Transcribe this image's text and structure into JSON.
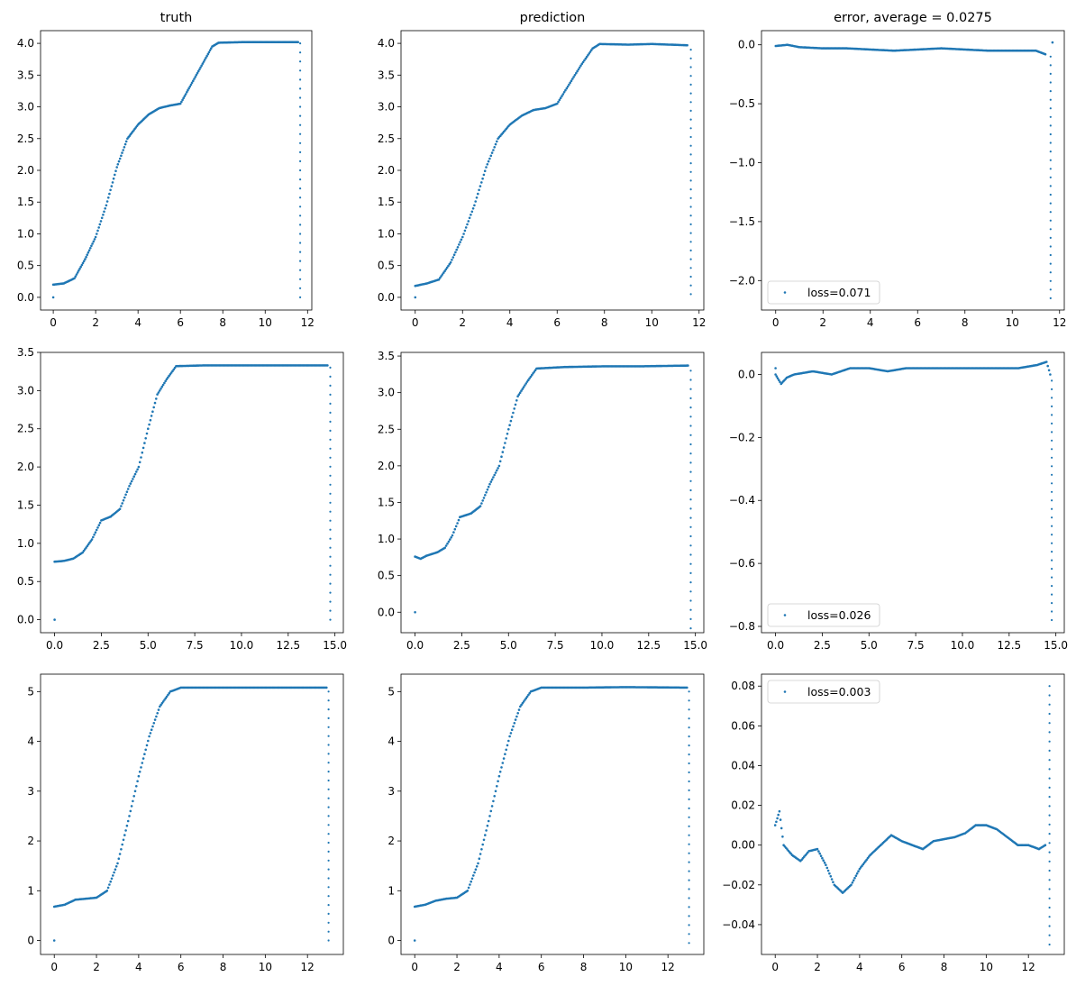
{
  "colors": {
    "series": "#1f77b4",
    "axes": "#000000",
    "background": "#ffffff"
  },
  "chart_data": [
    {
      "type": "scatter",
      "title": "truth",
      "xlim": [
        -0.6,
        12.2
      ],
      "ylim": [
        -0.2,
        4.2
      ],
      "xticks": [
        0,
        2,
        4,
        6,
        8,
        10,
        12
      ],
      "xtick_labels": [
        "0",
        "2",
        "4",
        "6",
        "8",
        "10",
        "12"
      ],
      "yticks": [
        0,
        0.5,
        1,
        1.5,
        2,
        2.5,
        3,
        3.5,
        4
      ],
      "ytick_labels": [
        "0.0",
        "0.5",
        "1.0",
        "1.5",
        "2.0",
        "2.5",
        "3.0",
        "3.5",
        "4.0"
      ],
      "legend": null,
      "curve": [
        [
          0,
          0.2
        ],
        [
          0.5,
          0.22
        ],
        [
          1,
          0.3
        ],
        [
          1.5,
          0.6
        ],
        [
          2,
          0.95
        ],
        [
          2.5,
          1.45
        ],
        [
          3,
          2.05
        ],
        [
          3.5,
          2.5
        ],
        [
          4,
          2.72
        ],
        [
          4.5,
          2.88
        ],
        [
          5,
          2.98
        ],
        [
          5.5,
          3.02
        ],
        [
          6,
          3.05
        ],
        [
          6.5,
          3.35
        ],
        [
          7,
          3.65
        ],
        [
          7.5,
          3.95
        ],
        [
          7.8,
          4.01
        ],
        [
          9,
          4.02
        ],
        [
          10,
          4.02
        ],
        [
          11.55,
          4.02
        ]
      ],
      "tail": {
        "x": 11.65,
        "from": 4.0,
        "to": 0.0
      },
      "isolated": [
        [
          0,
          0.0
        ]
      ]
    },
    {
      "type": "scatter",
      "title": "prediction",
      "xlim": [
        -0.6,
        12.2
      ],
      "ylim": [
        -0.2,
        4.2
      ],
      "xticks": [
        0,
        2,
        4,
        6,
        8,
        10,
        12
      ],
      "xtick_labels": [
        "0",
        "2",
        "4",
        "6",
        "8",
        "10",
        "12"
      ],
      "yticks": [
        0,
        0.5,
        1,
        1.5,
        2,
        2.5,
        3,
        3.5,
        4
      ],
      "ytick_labels": [
        "0.0",
        "0.5",
        "1.0",
        "1.5",
        "2.0",
        "2.5",
        "3.0",
        "3.5",
        "4.0"
      ],
      "legend": null,
      "curve": [
        [
          0,
          0.18
        ],
        [
          0.5,
          0.22
        ],
        [
          1,
          0.28
        ],
        [
          1.5,
          0.55
        ],
        [
          2,
          0.95
        ],
        [
          2.5,
          1.45
        ],
        [
          3,
          2.05
        ],
        [
          3.5,
          2.5
        ],
        [
          4,
          2.72
        ],
        [
          4.5,
          2.86
        ],
        [
          5,
          2.95
        ],
        [
          5.5,
          2.98
        ],
        [
          6,
          3.05
        ],
        [
          6.5,
          3.35
        ],
        [
          7,
          3.65
        ],
        [
          7.5,
          3.92
        ],
        [
          7.8,
          3.99
        ],
        [
          9,
          3.98
        ],
        [
          10,
          3.99
        ],
        [
          11.5,
          3.97
        ]
      ],
      "tail": {
        "x": 11.65,
        "from": 3.9,
        "to": 0.05
      },
      "isolated": [
        [
          0,
          0.0
        ]
      ]
    },
    {
      "type": "scatter",
      "title": "error, average = 0.0275",
      "xlim": [
        -0.6,
        12.2
      ],
      "ylim": [
        -2.25,
        0.12
      ],
      "xticks": [
        0,
        2,
        4,
        6,
        8,
        10,
        12
      ],
      "xtick_labels": [
        "0",
        "2",
        "4",
        "6",
        "8",
        "10",
        "12"
      ],
      "yticks": [
        0,
        -0.5,
        -1,
        -1.5,
        -2
      ],
      "ytick_labels": [
        "0.0",
        "−0.5",
        "−1.0",
        "−1.5",
        "−2.0"
      ],
      "legend": {
        "label": "loss=0.071",
        "loc": "lower left"
      },
      "curve": [
        [
          0,
          -0.01
        ],
        [
          0.5,
          0.0
        ],
        [
          1,
          -0.02
        ],
        [
          2,
          -0.03
        ],
        [
          3,
          -0.03
        ],
        [
          4,
          -0.04
        ],
        [
          5,
          -0.05
        ],
        [
          6,
          -0.04
        ],
        [
          7,
          -0.03
        ],
        [
          8,
          -0.04
        ],
        [
          9,
          -0.05
        ],
        [
          10,
          -0.05
        ],
        [
          11,
          -0.05
        ],
        [
          11.4,
          -0.08
        ]
      ],
      "tail": {
        "x": 11.62,
        "from": -0.1,
        "to": -2.15
      },
      "isolated": [
        [
          11.7,
          0.02
        ]
      ]
    },
    {
      "type": "scatter",
      "title": "",
      "xlim": [
        -0.75,
        15.45
      ],
      "ylim": [
        -0.17,
        3.5
      ],
      "xticks": [
        0,
        2.5,
        5,
        7.5,
        10,
        12.5,
        15
      ],
      "xtick_labels": [
        "0.0",
        "2.5",
        "5.0",
        "7.5",
        "10.0",
        "12.5",
        "15.0"
      ],
      "yticks": [
        0,
        0.5,
        1,
        1.5,
        2,
        2.5,
        3,
        3.5
      ],
      "ytick_labels": [
        "0.0",
        "0.5",
        "1.0",
        "1.5",
        "2.0",
        "2.5",
        "3.0",
        "3.5"
      ],
      "legend": null,
      "curve": [
        [
          0,
          0.76
        ],
        [
          0.5,
          0.77
        ],
        [
          1,
          0.8
        ],
        [
          1.5,
          0.88
        ],
        [
          2,
          1.05
        ],
        [
          2.5,
          1.3
        ],
        [
          3,
          1.35
        ],
        [
          3.5,
          1.45
        ],
        [
          4,
          1.75
        ],
        [
          4.5,
          2.0
        ],
        [
          5,
          2.5
        ],
        [
          5.5,
          2.95
        ],
        [
          6,
          3.15
        ],
        [
          6.5,
          3.32
        ],
        [
          8,
          3.33
        ],
        [
          10,
          3.33
        ],
        [
          12,
          3.33
        ],
        [
          14.6,
          3.33
        ]
      ],
      "tail": {
        "x": 14.75,
        "from": 3.3,
        "to": 0.0
      },
      "isolated": [
        [
          0,
          0.0
        ]
      ]
    },
    {
      "type": "scatter",
      "title": "",
      "xlim": [
        -0.75,
        15.45
      ],
      "ylim": [
        -0.28,
        3.55
      ],
      "xticks": [
        0,
        2.5,
        5,
        7.5,
        10,
        12.5,
        15
      ],
      "xtick_labels": [
        "0.0",
        "2.5",
        "5.0",
        "7.5",
        "10.0",
        "12.5",
        "15.0"
      ],
      "yticks": [
        0,
        0.5,
        1,
        1.5,
        2,
        2.5,
        3,
        3.5
      ],
      "ytick_labels": [
        "0.0",
        "0.5",
        "1.0",
        "1.5",
        "2.0",
        "2.5",
        "3.0",
        "3.5"
      ],
      "legend": null,
      "curve": [
        [
          0,
          0.76
        ],
        [
          0.3,
          0.73
        ],
        [
          0.6,
          0.77
        ],
        [
          1.2,
          0.82
        ],
        [
          1.6,
          0.88
        ],
        [
          2,
          1.05
        ],
        [
          2.4,
          1.3
        ],
        [
          3,
          1.35
        ],
        [
          3.5,
          1.45
        ],
        [
          4,
          1.75
        ],
        [
          4.5,
          2.0
        ],
        [
          5,
          2.5
        ],
        [
          5.5,
          2.95
        ],
        [
          6,
          3.15
        ],
        [
          6.5,
          3.33
        ],
        [
          8,
          3.35
        ],
        [
          10,
          3.36
        ],
        [
          12,
          3.36
        ],
        [
          14.6,
          3.37
        ]
      ],
      "tail": {
        "x": 14.75,
        "from": 3.3,
        "to": -0.22
      },
      "isolated": [
        [
          0,
          0.0
        ]
      ]
    },
    {
      "type": "scatter",
      "title": "",
      "xlim": [
        -0.75,
        15.45
      ],
      "ylim": [
        -0.82,
        0.07
      ],
      "xticks": [
        0,
        2.5,
        5,
        7.5,
        10,
        12.5,
        15
      ],
      "xtick_labels": [
        "0.0",
        "2.5",
        "5.0",
        "7.5",
        "10.0",
        "12.5",
        "15.0"
      ],
      "yticks": [
        0,
        -0.2,
        -0.4,
        -0.6,
        -0.8
      ],
      "ytick_labels": [
        "0.0",
        "−0.2",
        "−0.4",
        "−0.6",
        "−0.8"
      ],
      "legend": {
        "label": "loss=0.026",
        "loc": "lower left"
      },
      "curve": [
        [
          0,
          0.0
        ],
        [
          0.3,
          -0.03
        ],
        [
          0.6,
          -0.01
        ],
        [
          1,
          0.0
        ],
        [
          2,
          0.01
        ],
        [
          3,
          0.0
        ],
        [
          4,
          0.02
        ],
        [
          5,
          0.02
        ],
        [
          6,
          0.01
        ],
        [
          7,
          0.02
        ],
        [
          8,
          0.02
        ],
        [
          9,
          0.02
        ],
        [
          10,
          0.02
        ],
        [
          11,
          0.02
        ],
        [
          12,
          0.02
        ],
        [
          13,
          0.02
        ],
        [
          14,
          0.03
        ],
        [
          14.5,
          0.04
        ],
        [
          14.7,
          0.0
        ]
      ],
      "tail": {
        "x": 14.78,
        "from": -0.02,
        "to": -0.78
      },
      "isolated": [
        [
          0,
          0.02
        ]
      ]
    },
    {
      "type": "scatter",
      "title": "",
      "xlim": [
        -0.65,
        13.7
      ],
      "ylim": [
        -0.28,
        5.35
      ],
      "xticks": [
        0,
        2,
        4,
        6,
        8,
        10,
        12
      ],
      "xtick_labels": [
        "0",
        "2",
        "4",
        "6",
        "8",
        "10",
        "12"
      ],
      "yticks": [
        0,
        1,
        2,
        3,
        4,
        5
      ],
      "ytick_labels": [
        "0",
        "1",
        "2",
        "3",
        "4",
        "5"
      ],
      "legend": null,
      "curve": [
        [
          0,
          0.68
        ],
        [
          0.5,
          0.72
        ],
        [
          1,
          0.82
        ],
        [
          1.5,
          0.84
        ],
        [
          2,
          0.86
        ],
        [
          2.5,
          1.0
        ],
        [
          3,
          1.55
        ],
        [
          3.5,
          2.4
        ],
        [
          4,
          3.3
        ],
        [
          4.5,
          4.1
        ],
        [
          5,
          4.7
        ],
        [
          5.5,
          5.0
        ],
        [
          6,
          5.08
        ],
        [
          8,
          5.08
        ],
        [
          10,
          5.08
        ],
        [
          12.9,
          5.08
        ]
      ],
      "tail": {
        "x": 13.0,
        "from": 5.0,
        "to": 0.0
      },
      "isolated": [
        [
          0,
          0.0
        ]
      ]
    },
    {
      "type": "scatter",
      "title": "",
      "xlim": [
        -0.65,
        13.7
      ],
      "ylim": [
        -0.28,
        5.35
      ],
      "xticks": [
        0,
        2,
        4,
        6,
        8,
        10,
        12
      ],
      "xtick_labels": [
        "0",
        "2",
        "4",
        "6",
        "8",
        "10",
        "12"
      ],
      "yticks": [
        0,
        1,
        2,
        3,
        4,
        5
      ],
      "ytick_labels": [
        "0",
        "1",
        "2",
        "3",
        "4",
        "5"
      ],
      "legend": null,
      "curve": [
        [
          0,
          0.68
        ],
        [
          0.5,
          0.72
        ],
        [
          1,
          0.8
        ],
        [
          1.5,
          0.84
        ],
        [
          2,
          0.86
        ],
        [
          2.5,
          1.0
        ],
        [
          3,
          1.55
        ],
        [
          3.5,
          2.4
        ],
        [
          4,
          3.3
        ],
        [
          4.5,
          4.1
        ],
        [
          5,
          4.7
        ],
        [
          5.5,
          5.0
        ],
        [
          6,
          5.08
        ],
        [
          8,
          5.08
        ],
        [
          10,
          5.09
        ],
        [
          12.9,
          5.08
        ]
      ],
      "tail": {
        "x": 13.0,
        "from": 5.0,
        "to": -0.05
      },
      "isolated": [
        [
          0,
          0.0
        ]
      ]
    },
    {
      "type": "scatter",
      "title": "",
      "xlim": [
        -0.65,
        13.7
      ],
      "ylim": [
        -0.055,
        0.086
      ],
      "xticks": [
        0,
        2,
        4,
        6,
        8,
        10,
        12
      ],
      "xtick_labels": [
        "0",
        "2",
        "4",
        "6",
        "8",
        "10",
        "12"
      ],
      "yticks": [
        0.08,
        0.06,
        0.04,
        0.02,
        0,
        -0.02,
        -0.04
      ],
      "ytick_labels": [
        "0.08",
        "0.06",
        "0.04",
        "0.02",
        "0.00",
        "−0.02",
        "−0.04"
      ],
      "legend": {
        "label": "loss=0.003",
        "loc": "upper left"
      },
      "curve": [
        [
          0,
          0.01
        ],
        [
          0.2,
          0.017
        ],
        [
          0.4,
          0.0
        ],
        [
          0.8,
          -0.005
        ],
        [
          1.2,
          -0.008
        ],
        [
          1.6,
          -0.003
        ],
        [
          2,
          -0.002
        ],
        [
          2.4,
          -0.01
        ],
        [
          2.8,
          -0.02
        ],
        [
          3.2,
          -0.024
        ],
        [
          3.6,
          -0.02
        ],
        [
          4,
          -0.012
        ],
        [
          4.5,
          -0.005
        ],
        [
          5,
          0.0
        ],
        [
          5.5,
          0.005
        ],
        [
          6,
          0.002
        ],
        [
          6.5,
          0.0
        ],
        [
          7,
          -0.002
        ],
        [
          7.5,
          0.002
        ],
        [
          8,
          0.003
        ],
        [
          8.5,
          0.004
        ],
        [
          9,
          0.006
        ],
        [
          9.5,
          0.01
        ],
        [
          10,
          0.01
        ],
        [
          10.5,
          0.008
        ],
        [
          11,
          0.004
        ],
        [
          11.5,
          0.0
        ],
        [
          12,
          0.0
        ],
        [
          12.5,
          -0.002
        ],
        [
          12.8,
          0.0
        ]
      ],
      "tail": {
        "x": 13.0,
        "from": 0.08,
        "to": -0.05
      },
      "isolated": []
    }
  ]
}
